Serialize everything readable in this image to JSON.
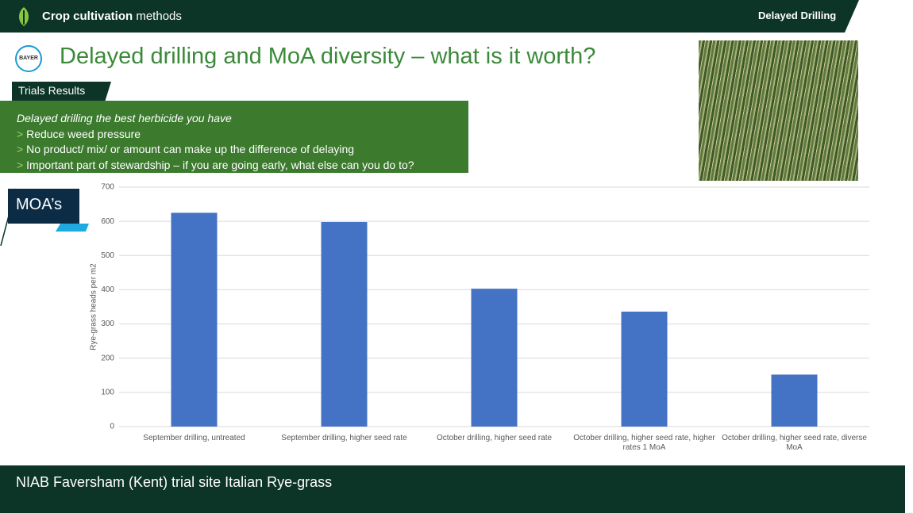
{
  "header": {
    "section_bold": "Crop cultivation",
    "section_rest": "methods",
    "tab": "Delayed Drilling"
  },
  "title": "Delayed drilling and MoA diversity – what is it worth?",
  "logo_text": "BAYER",
  "trials_tab": "Trials Results",
  "summary": {
    "heading": "Delayed drilling the best herbicide you have",
    "marker": ">",
    "items": [
      "Reduce weed pressure",
      "No product/ mix/ or amount can make up the difference of delaying",
      "Important part of stewardship – if you are going early, what else can you do to?"
    ]
  },
  "moa_tab": "MOA’s",
  "footer": "NIAB Faversham (Kent) trial site Italian Rye-grass",
  "chart_data": {
    "type": "bar",
    "ylabel": "Rye-grass heads per m2",
    "categories": [
      "September drilling, untreated",
      "September drilling, higher seed rate",
      "October drilling, higher seed rate",
      "October drilling, higher seed rate, higher rates 1 MoA",
      "October drilling, higher seed rate, diverse MoA"
    ],
    "values": [
      625,
      598,
      403,
      336,
      152
    ],
    "color": "#4472c4",
    "ylim": [
      0,
      700
    ],
    "yticks": [
      0,
      100,
      200,
      300,
      400,
      500,
      600,
      700
    ],
    "grid": true
  }
}
